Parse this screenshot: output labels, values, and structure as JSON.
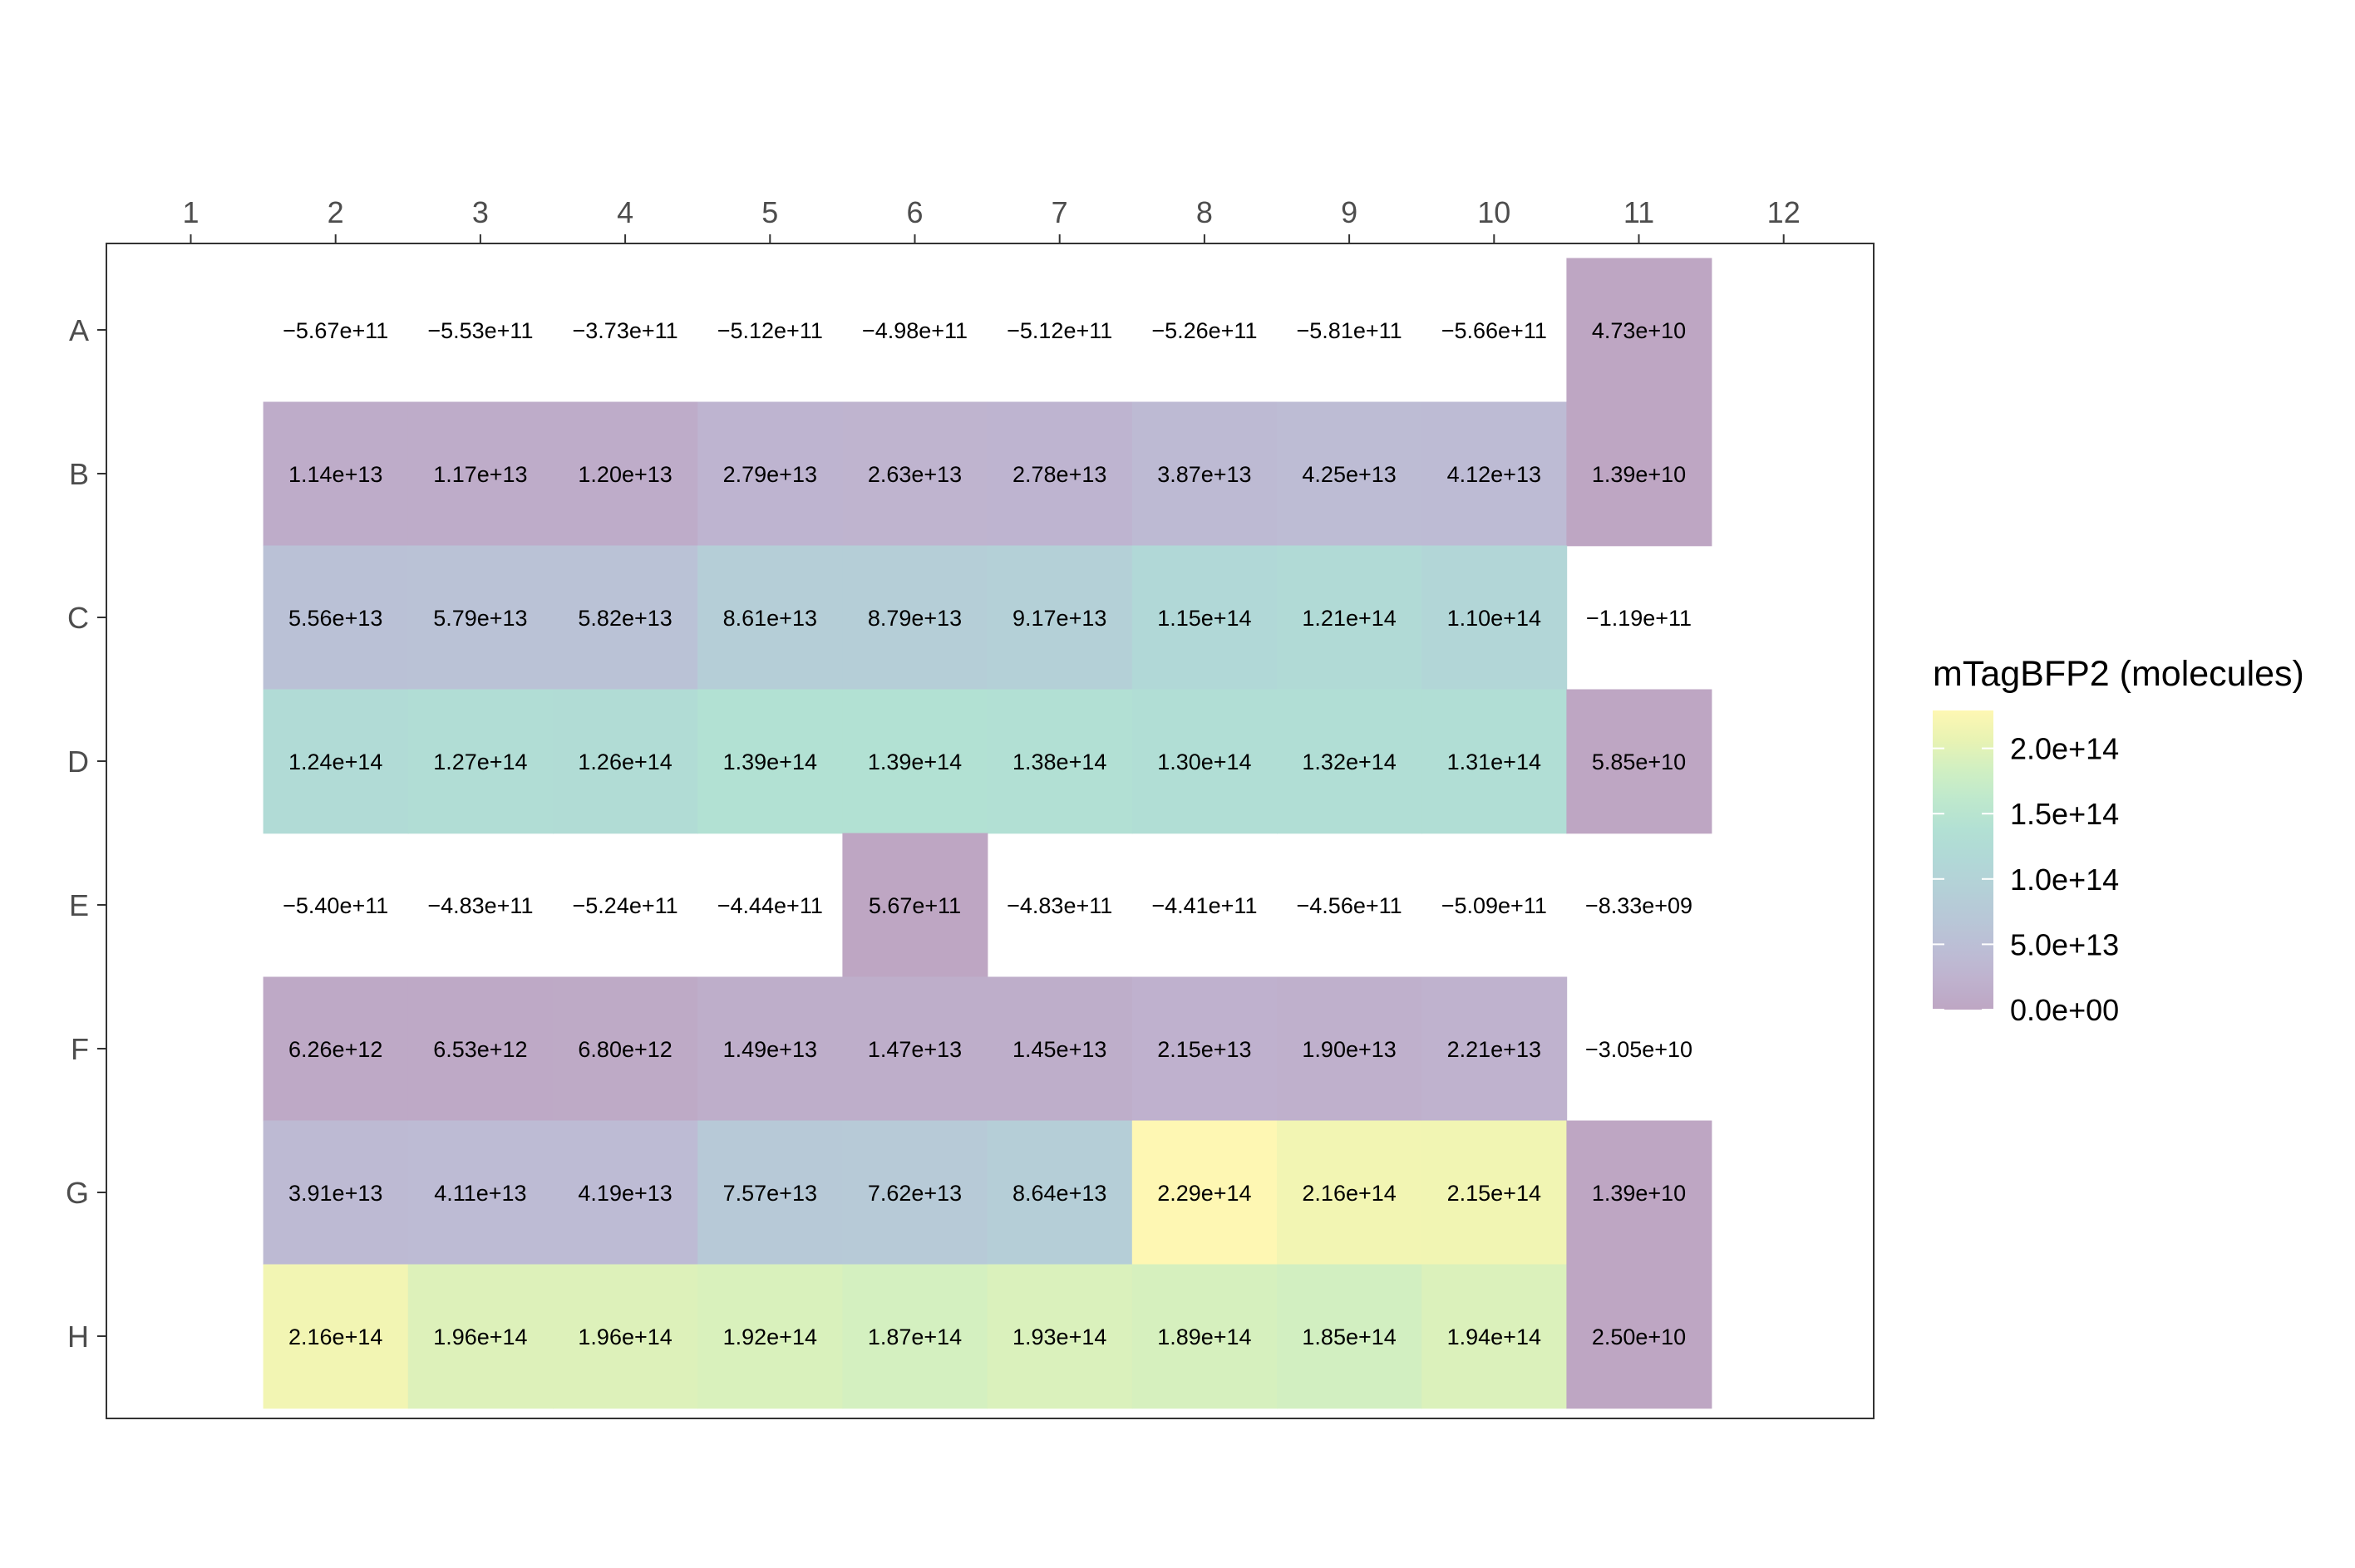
{
  "chart_data": {
    "type": "heatmap",
    "title": "",
    "xlabel": "",
    "ylabel": "",
    "x_categories": [
      "1",
      "2",
      "3",
      "4",
      "5",
      "6",
      "7",
      "8",
      "9",
      "10",
      "11",
      "12"
    ],
    "y_categories": [
      "A",
      "B",
      "C",
      "D",
      "E",
      "F",
      "G",
      "H"
    ],
    "x_axis_position": "top",
    "legend": {
      "title": "mTagBFP2 (molecules)",
      "placement": "right",
      "ticks": [
        "0.0e+00",
        "5.0e+13",
        "1.0e+14",
        "1.5e+14",
        "2.0e+14"
      ],
      "tick_values": [
        0,
        50000000000000.0,
        100000000000000.0,
        150000000000000.0,
        200000000000000.0
      ],
      "range": [
        0,
        229000000000000.0
      ],
      "colormap": "viridis",
      "alpha": 0.35
    },
    "cells": [
      {
        "row": "A",
        "col": "2",
        "label": "−5.67e+11",
        "value": -567000000000.0
      },
      {
        "row": "A",
        "col": "3",
        "label": "−5.53e+11",
        "value": -553000000000.0
      },
      {
        "row": "A",
        "col": "4",
        "label": "−3.73e+11",
        "value": -373000000000.0
      },
      {
        "row": "A",
        "col": "5",
        "label": "−5.12e+11",
        "value": -512000000000.0
      },
      {
        "row": "A",
        "col": "6",
        "label": "−4.98e+11",
        "value": -498000000000.0
      },
      {
        "row": "A",
        "col": "7",
        "label": "−5.12e+11",
        "value": -512000000000.0
      },
      {
        "row": "A",
        "col": "8",
        "label": "−5.26e+11",
        "value": -526000000000.0
      },
      {
        "row": "A",
        "col": "9",
        "label": "−5.81e+11",
        "value": -581000000000.0
      },
      {
        "row": "A",
        "col": "10",
        "label": "−5.66e+11",
        "value": -566000000000.0
      },
      {
        "row": "A",
        "col": "11",
        "label": "4.73e+10",
        "value": 47300000000.0
      },
      {
        "row": "B",
        "col": "2",
        "label": "1.14e+13",
        "value": 11400000000000.0
      },
      {
        "row": "B",
        "col": "3",
        "label": "1.17e+13",
        "value": 11700000000000.0
      },
      {
        "row": "B",
        "col": "4",
        "label": "1.20e+13",
        "value": 12000000000000.0
      },
      {
        "row": "B",
        "col": "5",
        "label": "2.79e+13",
        "value": 27900000000000.0
      },
      {
        "row": "B",
        "col": "6",
        "label": "2.63e+13",
        "value": 26300000000000.0
      },
      {
        "row": "B",
        "col": "7",
        "label": "2.78e+13",
        "value": 27800000000000.0
      },
      {
        "row": "B",
        "col": "8",
        "label": "3.87e+13",
        "value": 38700000000000.0
      },
      {
        "row": "B",
        "col": "9",
        "label": "4.25e+13",
        "value": 42500000000000.0
      },
      {
        "row": "B",
        "col": "10",
        "label": "4.12e+13",
        "value": 41200000000000.0
      },
      {
        "row": "B",
        "col": "11",
        "label": "1.39e+10",
        "value": 13900000000.0
      },
      {
        "row": "C",
        "col": "2",
        "label": "5.56e+13",
        "value": 55600000000000.0
      },
      {
        "row": "C",
        "col": "3",
        "label": "5.79e+13",
        "value": 57900000000000.0
      },
      {
        "row": "C",
        "col": "4",
        "label": "5.82e+13",
        "value": 58200000000000.0
      },
      {
        "row": "C",
        "col": "5",
        "label": "8.61e+13",
        "value": 86100000000000.0
      },
      {
        "row": "C",
        "col": "6",
        "label": "8.79e+13",
        "value": 87900000000000.0
      },
      {
        "row": "C",
        "col": "7",
        "label": "9.17e+13",
        "value": 91700000000000.0
      },
      {
        "row": "C",
        "col": "8",
        "label": "1.15e+14",
        "value": 115000000000000.0
      },
      {
        "row": "C",
        "col": "9",
        "label": "1.21e+14",
        "value": 121000000000000.0
      },
      {
        "row": "C",
        "col": "10",
        "label": "1.10e+14",
        "value": 110000000000000.0
      },
      {
        "row": "C",
        "col": "11",
        "label": "−1.19e+11",
        "value": -119000000000.0
      },
      {
        "row": "D",
        "col": "2",
        "label": "1.24e+14",
        "value": 124000000000000.0
      },
      {
        "row": "D",
        "col": "3",
        "label": "1.27e+14",
        "value": 127000000000000.0
      },
      {
        "row": "D",
        "col": "4",
        "label": "1.26e+14",
        "value": 126000000000000.0
      },
      {
        "row": "D",
        "col": "5",
        "label": "1.39e+14",
        "value": 139000000000000.0
      },
      {
        "row": "D",
        "col": "6",
        "label": "1.39e+14",
        "value": 139000000000000.0
      },
      {
        "row": "D",
        "col": "7",
        "label": "1.38e+14",
        "value": 138000000000000.0
      },
      {
        "row": "D",
        "col": "8",
        "label": "1.30e+14",
        "value": 130000000000000.0
      },
      {
        "row": "D",
        "col": "9",
        "label": "1.32e+14",
        "value": 132000000000000.0
      },
      {
        "row": "D",
        "col": "10",
        "label": "1.31e+14",
        "value": 131000000000000.0
      },
      {
        "row": "D",
        "col": "11",
        "label": "5.85e+10",
        "value": 58500000000.0
      },
      {
        "row": "E",
        "col": "2",
        "label": "−5.40e+11",
        "value": -540000000000.0
      },
      {
        "row": "E",
        "col": "3",
        "label": "−4.83e+11",
        "value": -483000000000.0
      },
      {
        "row": "E",
        "col": "4",
        "label": "−5.24e+11",
        "value": -524000000000.0
      },
      {
        "row": "E",
        "col": "5",
        "label": "−4.44e+11",
        "value": -444000000000.0
      },
      {
        "row": "E",
        "col": "6",
        "label": "5.67e+11",
        "value": 567000000000.0
      },
      {
        "row": "E",
        "col": "7",
        "label": "−4.83e+11",
        "value": -483000000000.0
      },
      {
        "row": "E",
        "col": "8",
        "label": "−4.41e+11",
        "value": -441000000000.0
      },
      {
        "row": "E",
        "col": "9",
        "label": "−4.56e+11",
        "value": -456000000000.0
      },
      {
        "row": "E",
        "col": "10",
        "label": "−5.09e+11",
        "value": -509000000000.0
      },
      {
        "row": "E",
        "col": "11",
        "label": "−8.33e+09",
        "value": -8330000000.0
      },
      {
        "row": "F",
        "col": "2",
        "label": "6.26e+12",
        "value": 6260000000000.0
      },
      {
        "row": "F",
        "col": "3",
        "label": "6.53e+12",
        "value": 6530000000000.0
      },
      {
        "row": "F",
        "col": "4",
        "label": "6.80e+12",
        "value": 6800000000000.0
      },
      {
        "row": "F",
        "col": "5",
        "label": "1.49e+13",
        "value": 14900000000000.0
      },
      {
        "row": "F",
        "col": "6",
        "label": "1.47e+13",
        "value": 14700000000000.0
      },
      {
        "row": "F",
        "col": "7",
        "label": "1.45e+13",
        "value": 14500000000000.0
      },
      {
        "row": "F",
        "col": "8",
        "label": "2.15e+13",
        "value": 21500000000000.0
      },
      {
        "row": "F",
        "col": "9",
        "label": "1.90e+13",
        "value": 19000000000000.0
      },
      {
        "row": "F",
        "col": "10",
        "label": "2.21e+13",
        "value": 22100000000000.0
      },
      {
        "row": "F",
        "col": "11",
        "label": "−3.05e+10",
        "value": -30500000000.0
      },
      {
        "row": "G",
        "col": "2",
        "label": "3.91e+13",
        "value": 39100000000000.0
      },
      {
        "row": "G",
        "col": "3",
        "label": "4.11e+13",
        "value": 41100000000000.0
      },
      {
        "row": "G",
        "col": "4",
        "label": "4.19e+13",
        "value": 41900000000000.0
      },
      {
        "row": "G",
        "col": "5",
        "label": "7.57e+13",
        "value": 75700000000000.0
      },
      {
        "row": "G",
        "col": "6",
        "label": "7.62e+13",
        "value": 76200000000000.0
      },
      {
        "row": "G",
        "col": "7",
        "label": "8.64e+13",
        "value": 86400000000000.0
      },
      {
        "row": "G",
        "col": "8",
        "label": "2.29e+14",
        "value": 229000000000000.0
      },
      {
        "row": "G",
        "col": "9",
        "label": "2.16e+14",
        "value": 216000000000000.0
      },
      {
        "row": "G",
        "col": "10",
        "label": "2.15e+14",
        "value": 215000000000000.0
      },
      {
        "row": "G",
        "col": "11",
        "label": "1.39e+10",
        "value": 13900000000.0
      },
      {
        "row": "H",
        "col": "2",
        "label": "2.16e+14",
        "value": 216000000000000.0
      },
      {
        "row": "H",
        "col": "3",
        "label": "1.96e+14",
        "value": 196000000000000.0
      },
      {
        "row": "H",
        "col": "4",
        "label": "1.96e+14",
        "value": 196000000000000.0
      },
      {
        "row": "H",
        "col": "5",
        "label": "1.92e+14",
        "value": 192000000000000.0
      },
      {
        "row": "H",
        "col": "6",
        "label": "1.87e+14",
        "value": 187000000000000.0
      },
      {
        "row": "H",
        "col": "7",
        "label": "1.93e+14",
        "value": 193000000000000.0
      },
      {
        "row": "H",
        "col": "8",
        "label": "1.89e+14",
        "value": 189000000000000.0
      },
      {
        "row": "H",
        "col": "9",
        "label": "1.85e+14",
        "value": 185000000000000.0
      },
      {
        "row": "H",
        "col": "10",
        "label": "1.94e+14",
        "value": 194000000000000.0
      },
      {
        "row": "H",
        "col": "11",
        "label": "2.50e+10",
        "value": 25000000000.0
      }
    ]
  }
}
